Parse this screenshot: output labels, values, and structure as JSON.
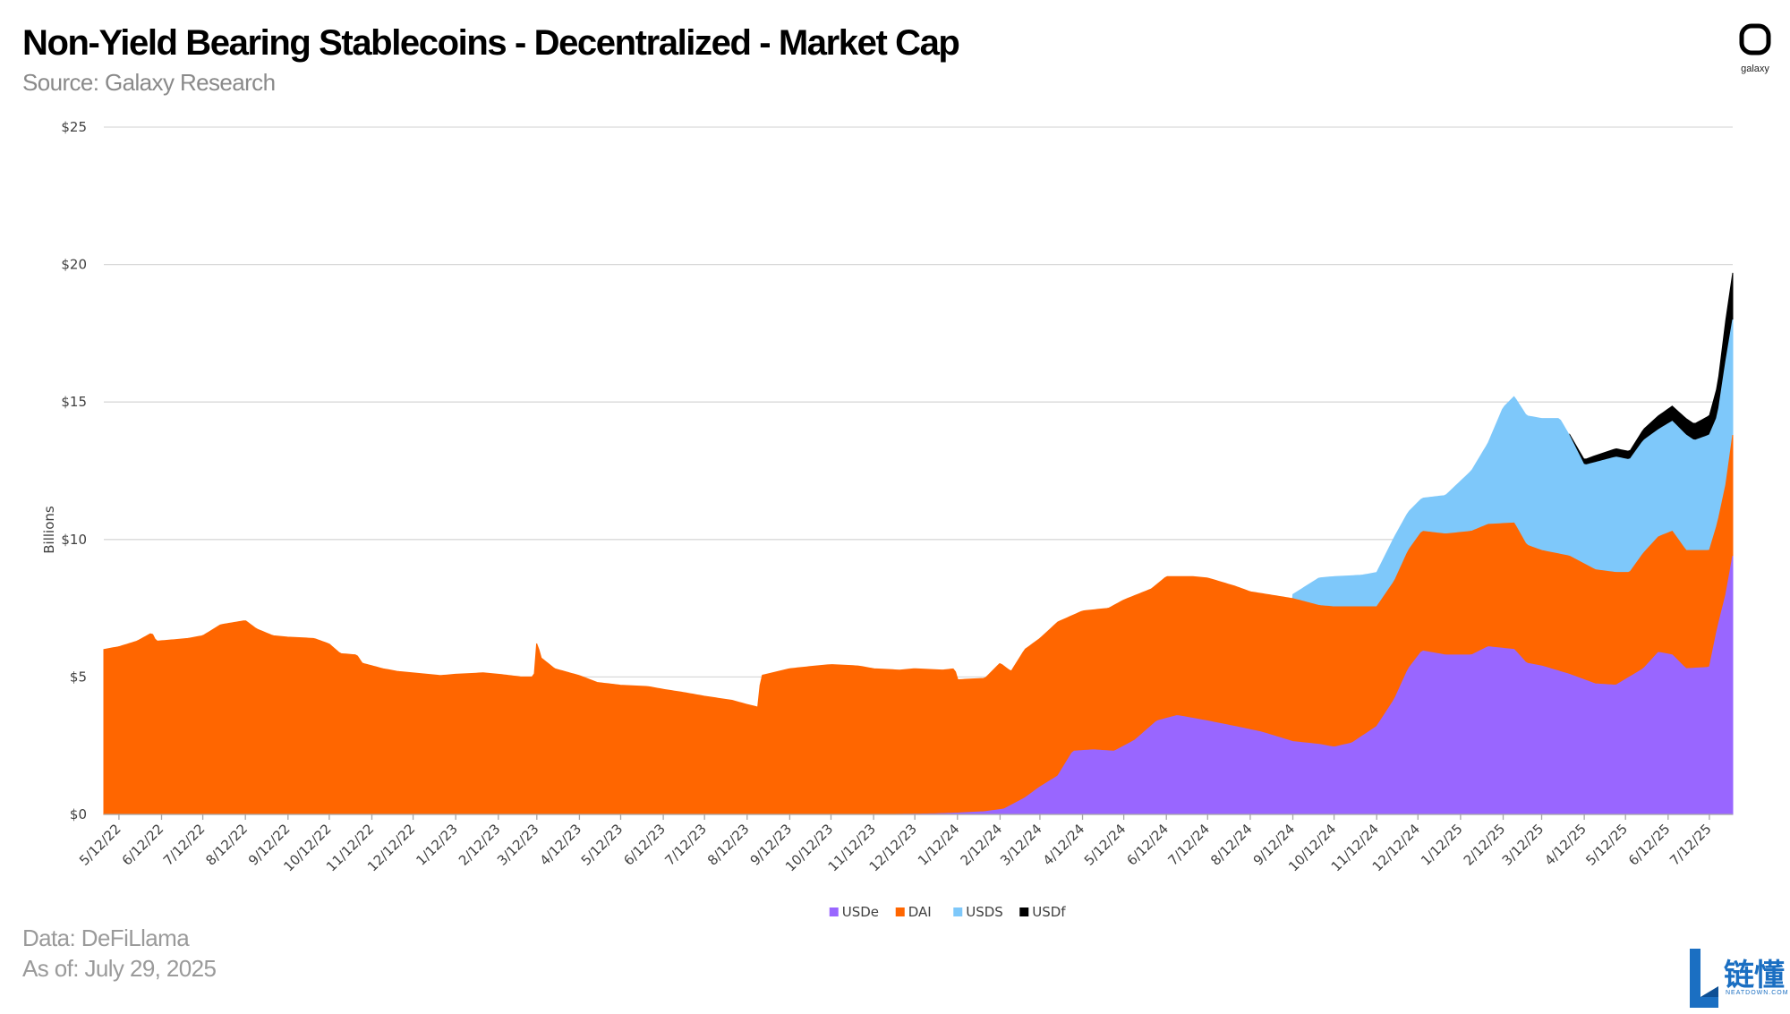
{
  "header": {
    "title": "Non-Yield Bearing Stablecoins - Decentralized - Market Cap",
    "subtitle": "Source: Galaxy Research",
    "logo_text": "galaxy"
  },
  "footer": {
    "data_source": "Data: DeFiLlama",
    "as_of": "As of: July 29, 2025"
  },
  "watermark": {
    "text": "链懂",
    "sub": "NEATDOWN.COM"
  },
  "chart_data": {
    "type": "area",
    "stacked": true,
    "ylabel": "Billions",
    "ylim": [
      0,
      25
    ],
    "grid": true,
    "legend_position": "bottom",
    "y_ticks": [
      "$0",
      "$5",
      "$10",
      "$15",
      "$20",
      "$25"
    ],
    "y_tick_values": [
      0,
      5,
      10,
      15,
      20,
      25
    ],
    "x_tick_labels": [
      "5/12/22",
      "6/12/22",
      "7/12/22",
      "8/12/22",
      "9/12/22",
      "10/12/22",
      "11/12/22",
      "12/12/22",
      "1/12/23",
      "2/12/23",
      "3/12/23",
      "4/12/23",
      "5/12/23",
      "6/12/23",
      "7/12/23",
      "8/12/23",
      "9/12/23",
      "10/12/23",
      "11/12/23",
      "12/12/23",
      "1/12/24",
      "2/12/24",
      "3/12/24",
      "4/12/24",
      "5/12/24",
      "6/12/24",
      "7/12/24",
      "8/12/24",
      "9/12/24",
      "10/12/24",
      "11/12/24",
      "12/12/24",
      "1/12/25",
      "2/12/25",
      "3/12/25",
      "4/12/25",
      "5/12/25",
      "6/12/25",
      "7/12/25"
    ],
    "x_range": [
      "5/1/22",
      "7/29/25"
    ],
    "series": [
      {
        "name": "USDe",
        "color": "#9966ff",
        "points": [
          [
            "5/1/22",
            0
          ],
          [
            "11/25/23",
            0
          ],
          [
            "12/25/23",
            0.02
          ],
          [
            "1/12/24",
            0.05
          ],
          [
            "2/1/24",
            0.1
          ],
          [
            "2/15/24",
            0.2
          ],
          [
            "3/1/24",
            0.6
          ],
          [
            "3/12/24",
            1.0
          ],
          [
            "3/25/24",
            1.4
          ],
          [
            "4/5/24",
            2.3
          ],
          [
            "4/20/24",
            2.35
          ],
          [
            "5/5/24",
            2.3
          ],
          [
            "5/20/24",
            2.7
          ],
          [
            "6/5/24",
            3.4
          ],
          [
            "6/20/24",
            3.6
          ],
          [
            "7/12/24",
            3.4
          ],
          [
            "8/1/24",
            3.2
          ],
          [
            "8/20/24",
            3.0
          ],
          [
            "9/12/24",
            2.65
          ],
          [
            "10/1/24",
            2.55
          ],
          [
            "10/12/24",
            2.45
          ],
          [
            "10/25/24",
            2.6
          ],
          [
            "11/12/24",
            3.2
          ],
          [
            "11/25/24",
            4.2
          ],
          [
            "12/5/24",
            5.3
          ],
          [
            "12/15/24",
            5.95
          ],
          [
            "1/1/25",
            5.8
          ],
          [
            "1/20/25",
            5.8
          ],
          [
            "2/1/25",
            6.1
          ],
          [
            "2/20/25",
            6.0
          ],
          [
            "3/1/25",
            5.5
          ],
          [
            "3/12/25",
            5.4
          ],
          [
            "4/1/25",
            5.1
          ],
          [
            "4/20/25",
            4.75
          ],
          [
            "5/5/25",
            4.7
          ],
          [
            "5/25/25",
            5.3
          ],
          [
            "6/5/25",
            5.9
          ],
          [
            "6/15/25",
            5.8
          ],
          [
            "6/25/25",
            5.3
          ],
          [
            "7/12/25",
            5.35
          ],
          [
            "7/18/25",
            6.8
          ],
          [
            "7/24/25",
            8.0
          ],
          [
            "7/29/25",
            9.4
          ]
        ]
      },
      {
        "name": "DAI",
        "color": "#ff6600",
        "points": [
          [
            "5/1/22",
            6.0
          ],
          [
            "5/12/22",
            6.1
          ],
          [
            "5/25/22",
            6.3
          ],
          [
            "6/5/22",
            6.6
          ],
          [
            "6/8/22",
            6.3
          ],
          [
            "6/20/22",
            6.35
          ],
          [
            "7/1/22",
            6.4
          ],
          [
            "7/12/22",
            6.5
          ],
          [
            "7/25/22",
            6.9
          ],
          [
            "8/12/22",
            7.05
          ],
          [
            "8/20/22",
            6.75
          ],
          [
            "9/1/22",
            6.5
          ],
          [
            "9/12/22",
            6.45
          ],
          [
            "10/1/22",
            6.4
          ],
          [
            "10/12/22",
            6.2
          ],
          [
            "10/20/22",
            5.85
          ],
          [
            "11/1/22",
            5.8
          ],
          [
            "11/5/22",
            5.5
          ],
          [
            "11/20/22",
            5.3
          ],
          [
            "12/1/22",
            5.2
          ],
          [
            "12/12/22",
            5.15
          ],
          [
            "1/1/23",
            5.05
          ],
          [
            "1/12/23",
            5.1
          ],
          [
            "2/1/23",
            5.15
          ],
          [
            "2/12/23",
            5.1
          ],
          [
            "3/1/23",
            5.0
          ],
          [
            "3/10/23",
            5.0
          ],
          [
            "3/12/23",
            6.3
          ],
          [
            "3/15/23",
            5.7
          ],
          [
            "3/25/23",
            5.3
          ],
          [
            "4/12/23",
            5.05
          ],
          [
            "4/25/23",
            4.8
          ],
          [
            "5/12/23",
            4.7
          ],
          [
            "6/1/23",
            4.65
          ],
          [
            "6/12/23",
            4.55
          ],
          [
            "6/25/23",
            4.45
          ],
          [
            "7/12/23",
            4.3
          ],
          [
            "8/1/23",
            4.15
          ],
          [
            "8/12/23",
            4.0
          ],
          [
            "8/20/23",
            3.9
          ],
          [
            "8/22/23",
            5.05
          ],
          [
            "9/12/23",
            5.3
          ],
          [
            "10/1/23",
            5.4
          ],
          [
            "10/12/23",
            5.45
          ],
          [
            "11/1/23",
            5.4
          ],
          [
            "11/12/23",
            5.3
          ],
          [
            "12/1/23",
            5.25
          ],
          [
            "12/12/23",
            5.3
          ],
          [
            "1/1/24",
            5.25
          ],
          [
            "1/10/24",
            5.3
          ],
          [
            "1/12/24",
            4.9
          ],
          [
            "2/1/24",
            4.95
          ],
          [
            "2/12/24",
            5.5
          ],
          [
            "2/20/24",
            5.2
          ],
          [
            "3/1/24",
            6.0
          ],
          [
            "3/12/24",
            6.4
          ],
          [
            "3/25/24",
            7.0
          ],
          [
            "4/12/24",
            7.4
          ],
          [
            "5/1/24",
            7.5
          ],
          [
            "5/12/24",
            7.8
          ],
          [
            "6/1/24",
            8.2
          ],
          [
            "6/12/24",
            8.65
          ],
          [
            "7/1/24",
            8.65
          ],
          [
            "7/12/24",
            8.6
          ],
          [
            "8/1/24",
            8.3
          ],
          [
            "8/12/24",
            8.1
          ],
          [
            "9/12/24",
            7.85
          ],
          [
            "10/1/24",
            7.6
          ],
          [
            "10/12/24",
            7.55
          ],
          [
            "11/1/24",
            7.55
          ],
          [
            "11/12/24",
            7.55
          ],
          [
            "11/25/24",
            8.5
          ],
          [
            "12/5/24",
            9.6
          ],
          [
            "12/15/24",
            10.3
          ],
          [
            "1/1/25",
            10.2
          ],
          [
            "1/20/25",
            10.3
          ],
          [
            "2/1/25",
            10.55
          ],
          [
            "2/20/25",
            10.6
          ],
          [
            "3/1/25",
            9.8
          ],
          [
            "3/12/25",
            9.6
          ],
          [
            "4/1/25",
            9.4
          ],
          [
            "4/20/25",
            8.9
          ],
          [
            "5/5/25",
            8.8
          ],
          [
            "5/15/25",
            8.8
          ],
          [
            "5/25/25",
            9.5
          ],
          [
            "6/5/25",
            10.1
          ],
          [
            "6/15/25",
            10.3
          ],
          [
            "6/25/25",
            9.6
          ],
          [
            "7/12/25",
            9.6
          ],
          [
            "7/18/25",
            10.6
          ],
          [
            "7/24/25",
            12.0
          ],
          [
            "7/29/25",
            13.8
          ]
        ]
      },
      {
        "name": "USDS",
        "color": "#7ec8fa",
        "points": [
          [
            "5/1/22",
            0
          ],
          [
            "9/1/24",
            0
          ],
          [
            "9/12/24",
            8.0
          ],
          [
            "10/1/24",
            8.6
          ],
          [
            "10/12/24",
            8.65
          ],
          [
            "11/1/24",
            8.7
          ],
          [
            "11/12/24",
            8.8
          ],
          [
            "11/25/24",
            10.1
          ],
          [
            "12/5/24",
            11.0
          ],
          [
            "12/15/24",
            11.5
          ],
          [
            "1/1/25",
            11.6
          ],
          [
            "1/20/25",
            12.5
          ],
          [
            "2/1/25",
            13.5
          ],
          [
            "2/12/25",
            14.8
          ],
          [
            "2/20/25",
            15.2
          ],
          [
            "3/1/25",
            14.5
          ],
          [
            "3/12/25",
            14.4
          ],
          [
            "3/25/25",
            14.4
          ],
          [
            "4/1/25",
            13.8
          ],
          [
            "4/12/25",
            12.7
          ],
          [
            "4/20/25",
            12.8
          ],
          [
            "5/5/25",
            13.0
          ],
          [
            "5/15/25",
            12.9
          ],
          [
            "5/25/25",
            13.6
          ],
          [
            "6/5/25",
            14.0
          ],
          [
            "6/15/25",
            14.3
          ],
          [
            "6/25/25",
            13.8
          ],
          [
            "7/1/25",
            13.6
          ],
          [
            "7/12/25",
            13.8
          ],
          [
            "7/18/25",
            14.5
          ],
          [
            "7/24/25",
            16.5
          ],
          [
            "7/29/25",
            18.0
          ]
        ]
      },
      {
        "name": "USDf",
        "color": "#000000",
        "points": [
          [
            "5/1/22",
            0
          ],
          [
            "3/20/25",
            0
          ],
          [
            "4/1/25",
            13.85
          ],
          [
            "4/12/25",
            12.9
          ],
          [
            "4/20/25",
            13.05
          ],
          [
            "5/5/25",
            13.3
          ],
          [
            "5/15/25",
            13.2
          ],
          [
            "5/25/25",
            14.0
          ],
          [
            "6/5/25",
            14.5
          ],
          [
            "6/15/25",
            14.85
          ],
          [
            "6/25/25",
            14.4
          ],
          [
            "7/1/25",
            14.2
          ],
          [
            "7/12/25",
            14.5
          ],
          [
            "7/18/25",
            15.6
          ],
          [
            "7/24/25",
            18.0
          ],
          [
            "7/29/25",
            19.7
          ]
        ]
      }
    ]
  }
}
